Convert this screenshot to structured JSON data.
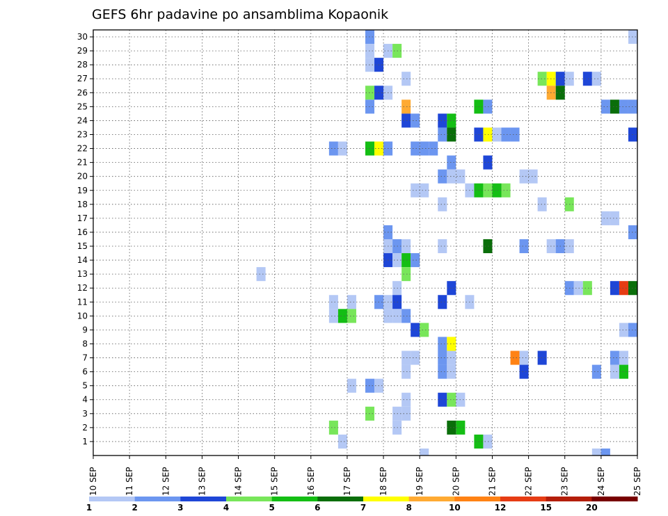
{
  "chart_data": {
    "type": "heatmap",
    "title": "GEFS 6hr padavine po ansamblima Kopaonik",
    "x_tick_labels": [
      "10 SEP",
      "11 SEP",
      "12 SEP",
      "13 SEP",
      "14 SEP",
      "15 SEP",
      "16 SEP",
      "17 SEP",
      "18 SEP",
      "19 SEP",
      "20 SEP",
      "21 SEP",
      "22 SEP",
      "23 SEP",
      "24 SEP",
      "25 SEP"
    ],
    "y_tick_labels": [
      "1",
      "2",
      "3",
      "4",
      "5",
      "6",
      "7",
      "8",
      "9",
      "10",
      "11",
      "12",
      "13",
      "14",
      "15",
      "16",
      "17",
      "18",
      "19",
      "20",
      "21",
      "22",
      "23",
      "24",
      "25",
      "26",
      "27",
      "28",
      "29",
      "30"
    ],
    "xlim": [
      0,
      60
    ],
    "ylim": [
      0,
      30.5
    ],
    "grid": true,
    "colorbar": {
      "levels": [
        "1",
        "2",
        "3",
        "4",
        "5",
        "6",
        "7",
        "8",
        "10",
        "12",
        "15",
        "20"
      ],
      "colors": [
        "#b4c8f5",
        "#6c96f0",
        "#1e46d7",
        "#78e65a",
        "#14be14",
        "#0a6e0a",
        "#ffff00",
        "#ffaa32",
        "#ff8214",
        "#e63c14",
        "#b41e0a",
        "#780000"
      ]
    },
    "cells": [
      {
        "t": 30,
        "m": 30,
        "c": 2
      },
      {
        "t": 59,
        "m": 30,
        "c": 1
      },
      {
        "t": 30,
        "m": 29,
        "c": 1
      },
      {
        "t": 32,
        "m": 29,
        "c": 1
      },
      {
        "t": 33,
        "m": 29,
        "c": 4
      },
      {
        "t": 30,
        "m": 28,
        "c": 1
      },
      {
        "t": 31,
        "m": 28,
        "c": 3
      },
      {
        "t": 34,
        "m": 27,
        "c": 1
      },
      {
        "t": 49,
        "m": 27,
        "c": 4
      },
      {
        "t": 50,
        "m": 27,
        "c": 7
      },
      {
        "t": 51,
        "m": 27,
        "c": 3
      },
      {
        "t": 52,
        "m": 27,
        "c": 1
      },
      {
        "t": 54,
        "m": 27,
        "c": 3
      },
      {
        "t": 55,
        "m": 27,
        "c": 1
      },
      {
        "t": 30,
        "m": 26,
        "c": 4
      },
      {
        "t": 31,
        "m": 26,
        "c": 3
      },
      {
        "t": 32,
        "m": 26,
        "c": 1
      },
      {
        "t": 50,
        "m": 26,
        "c": 8
      },
      {
        "t": 51,
        "m": 26,
        "c": 6
      },
      {
        "t": 30,
        "m": 25,
        "c": 2
      },
      {
        "t": 34,
        "m": 25,
        "c": 8
      },
      {
        "t": 42,
        "m": 25,
        "c": 5
      },
      {
        "t": 43,
        "m": 25,
        "c": 2
      },
      {
        "t": 56,
        "m": 25,
        "c": 2
      },
      {
        "t": 57,
        "m": 25,
        "c": 6
      },
      {
        "t": 58,
        "m": 25,
        "c": 2
      },
      {
        "t": 59,
        "m": 25,
        "c": 2
      },
      {
        "t": 34,
        "m": 24,
        "c": 3
      },
      {
        "t": 35,
        "m": 24,
        "c": 2
      },
      {
        "t": 38,
        "m": 24,
        "c": 3
      },
      {
        "t": 39,
        "m": 24,
        "c": 5
      },
      {
        "t": 38,
        "m": 23,
        "c": 2
      },
      {
        "t": 39,
        "m": 23,
        "c": 6
      },
      {
        "t": 42,
        "m": 23,
        "c": 3
      },
      {
        "t": 43,
        "m": 23,
        "c": 7
      },
      {
        "t": 44,
        "m": 23,
        "c": 1
      },
      {
        "t": 45,
        "m": 23,
        "c": 2
      },
      {
        "t": 46,
        "m": 23,
        "c": 2
      },
      {
        "t": 59,
        "m": 23,
        "c": 3
      },
      {
        "t": 26,
        "m": 22,
        "c": 2
      },
      {
        "t": 27,
        "m": 22,
        "c": 1
      },
      {
        "t": 30,
        "m": 22,
        "c": 5
      },
      {
        "t": 31,
        "m": 22,
        "c": 7
      },
      {
        "t": 32,
        "m": 22,
        "c": 2
      },
      {
        "t": 35,
        "m": 22,
        "c": 2
      },
      {
        "t": 36,
        "m": 22,
        "c": 2
      },
      {
        "t": 37,
        "m": 22,
        "c": 2
      },
      {
        "t": 39,
        "m": 21,
        "c": 2
      },
      {
        "t": 43,
        "m": 21,
        "c": 3
      },
      {
        "t": 38,
        "m": 20,
        "c": 2
      },
      {
        "t": 39,
        "m": 20,
        "c": 1
      },
      {
        "t": 40,
        "m": 20,
        "c": 1
      },
      {
        "t": 47,
        "m": 20,
        "c": 1
      },
      {
        "t": 48,
        "m": 20,
        "c": 1
      },
      {
        "t": 35,
        "m": 19,
        "c": 1
      },
      {
        "t": 36,
        "m": 19,
        "c": 1
      },
      {
        "t": 41,
        "m": 19,
        "c": 1
      },
      {
        "t": 42,
        "m": 19,
        "c": 5
      },
      {
        "t": 43,
        "m": 19,
        "c": 4
      },
      {
        "t": 44,
        "m": 19,
        "c": 5
      },
      {
        "t": 45,
        "m": 19,
        "c": 4
      },
      {
        "t": 38,
        "m": 18,
        "c": 1
      },
      {
        "t": 49,
        "m": 18,
        "c": 1
      },
      {
        "t": 52,
        "m": 18,
        "c": 4
      },
      {
        "t": 56,
        "m": 17,
        "c": 1
      },
      {
        "t": 57,
        "m": 17,
        "c": 1
      },
      {
        "t": 32,
        "m": 16,
        "c": 2
      },
      {
        "t": 59,
        "m": 16,
        "c": 2
      },
      {
        "t": 32,
        "m": 15,
        "c": 1
      },
      {
        "t": 33,
        "m": 15,
        "c": 2
      },
      {
        "t": 34,
        "m": 15,
        "c": 1
      },
      {
        "t": 38,
        "m": 15,
        "c": 1
      },
      {
        "t": 43,
        "m": 15,
        "c": 6
      },
      {
        "t": 47,
        "m": 15,
        "c": 2
      },
      {
        "t": 50,
        "m": 15,
        "c": 1
      },
      {
        "t": 51,
        "m": 15,
        "c": 2
      },
      {
        "t": 52,
        "m": 15,
        "c": 1
      },
      {
        "t": 32,
        "m": 14,
        "c": 3
      },
      {
        "t": 33,
        "m": 14,
        "c": 1
      },
      {
        "t": 34,
        "m": 14,
        "c": 5
      },
      {
        "t": 35,
        "m": 14,
        "c": 2
      },
      {
        "t": 18,
        "m": 13,
        "c": 1
      },
      {
        "t": 34,
        "m": 13,
        "c": 4
      },
      {
        "t": 33,
        "m": 12,
        "c": 1
      },
      {
        "t": 39,
        "m": 12,
        "c": 3
      },
      {
        "t": 52,
        "m": 12,
        "c": 2
      },
      {
        "t": 53,
        "m": 12,
        "c": 1
      },
      {
        "t": 54,
        "m": 12,
        "c": 4
      },
      {
        "t": 57,
        "m": 12,
        "c": 3
      },
      {
        "t": 58,
        "m": 12,
        "c": 10
      },
      {
        "t": 59,
        "m": 12,
        "c": 6
      },
      {
        "t": 26,
        "m": 11,
        "c": 1
      },
      {
        "t": 28,
        "m": 11,
        "c": 1
      },
      {
        "t": 31,
        "m": 11,
        "c": 2
      },
      {
        "t": 32,
        "m": 11,
        "c": 1
      },
      {
        "t": 33,
        "m": 11,
        "c": 3
      },
      {
        "t": 38,
        "m": 11,
        "c": 3
      },
      {
        "t": 41,
        "m": 11,
        "c": 1
      },
      {
        "t": 26,
        "m": 10,
        "c": 1
      },
      {
        "t": 27,
        "m": 10,
        "c": 5
      },
      {
        "t": 28,
        "m": 10,
        "c": 4
      },
      {
        "t": 32,
        "m": 10,
        "c": 1
      },
      {
        "t": 33,
        "m": 10,
        "c": 1
      },
      {
        "t": 34,
        "m": 10,
        "c": 2
      },
      {
        "t": 35,
        "m": 9,
        "c": 3
      },
      {
        "t": 36,
        "m": 9,
        "c": 4
      },
      {
        "t": 58,
        "m": 9,
        "c": 1
      },
      {
        "t": 59,
        "m": 9,
        "c": 2
      },
      {
        "t": 38,
        "m": 8,
        "c": 2
      },
      {
        "t": 39,
        "m": 8,
        "c": 7
      },
      {
        "t": 34,
        "m": 7,
        "c": 1
      },
      {
        "t": 35,
        "m": 7,
        "c": 1
      },
      {
        "t": 38,
        "m": 7,
        "c": 2
      },
      {
        "t": 39,
        "m": 7,
        "c": 1
      },
      {
        "t": 46,
        "m": 7,
        "c": 9
      },
      {
        "t": 47,
        "m": 7,
        "c": 1
      },
      {
        "t": 49,
        "m": 7,
        "c": 3
      },
      {
        "t": 57,
        "m": 7,
        "c": 2
      },
      {
        "t": 58,
        "m": 7,
        "c": 1
      },
      {
        "t": 34,
        "m": 6,
        "c": 1
      },
      {
        "t": 38,
        "m": 6,
        "c": 2
      },
      {
        "t": 39,
        "m": 6,
        "c": 1
      },
      {
        "t": 47,
        "m": 6,
        "c": 3
      },
      {
        "t": 55,
        "m": 6,
        "c": 2
      },
      {
        "t": 57,
        "m": 6,
        "c": 1
      },
      {
        "t": 58,
        "m": 6,
        "c": 5
      },
      {
        "t": 28,
        "m": 5,
        "c": 1
      },
      {
        "t": 30,
        "m": 5,
        "c": 2
      },
      {
        "t": 31,
        "m": 5,
        "c": 1
      },
      {
        "t": 34,
        "m": 4,
        "c": 1
      },
      {
        "t": 38,
        "m": 4,
        "c": 3
      },
      {
        "t": 39,
        "m": 4,
        "c": 4
      },
      {
        "t": 40,
        "m": 4,
        "c": 1
      },
      {
        "t": 30,
        "m": 3,
        "c": 4
      },
      {
        "t": 33,
        "m": 3,
        "c": 1
      },
      {
        "t": 34,
        "m": 3,
        "c": 1
      },
      {
        "t": 26,
        "m": 2,
        "c": 4
      },
      {
        "t": 33,
        "m": 2,
        "c": 1
      },
      {
        "t": 39,
        "m": 2,
        "c": 6
      },
      {
        "t": 40,
        "m": 2,
        "c": 5
      },
      {
        "t": 27,
        "m": 1,
        "c": 1
      },
      {
        "t": 42,
        "m": 1,
        "c": 5
      },
      {
        "t": 43,
        "m": 1,
        "c": 1
      },
      {
        "t": 36,
        "m": 0,
        "c": 1
      },
      {
        "t": 55,
        "m": 0,
        "c": 1
      },
      {
        "t": 56,
        "m": 0,
        "c": 2
      }
    ]
  }
}
